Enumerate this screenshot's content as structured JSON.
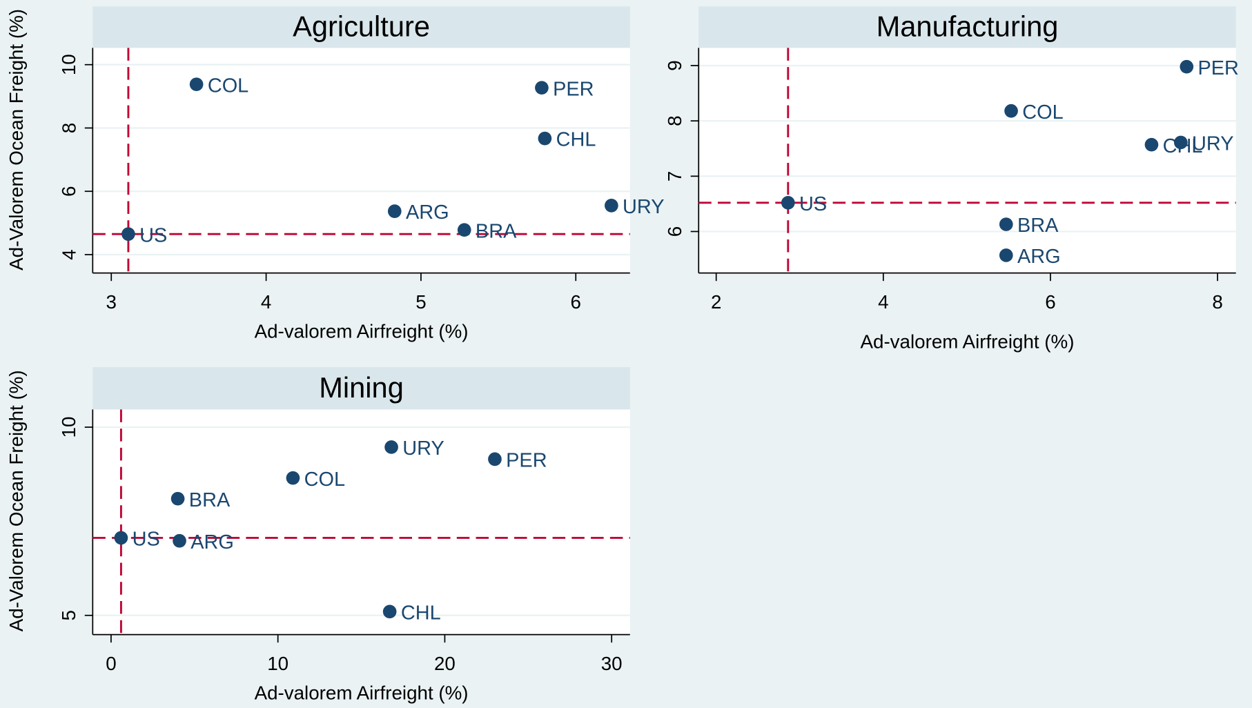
{
  "chart_data": [
    {
      "type": "scatter",
      "title": "Agriculture",
      "xlabel": "Ad-valorem Airfreight (%)",
      "ylabel": "Ad-Valorem Ocean Freight (%)",
      "point_labels": [
        "COL",
        "PER",
        "CHL",
        "ARG",
        "BRA",
        "URY",
        "US"
      ],
      "x": [
        3.55,
        5.78,
        5.8,
        4.83,
        5.28,
        6.23,
        3.11
      ],
      "y": [
        9.38,
        9.27,
        7.67,
        5.37,
        4.78,
        5.55,
        4.65
      ],
      "xline": 3.11,
      "yline": 4.65,
      "xlim": [
        2.88,
        6.35
      ],
      "ylim": [
        3.42,
        10.53
      ],
      "xticks": [
        3,
        4,
        5,
        6
      ],
      "yticks": [
        4,
        6,
        8,
        10
      ],
      "color": "#1a476f",
      "line_color": "#c10534",
      "grid": true
    },
    {
      "type": "scatter",
      "title": "Manufacturing",
      "xlabel": "Ad-valorem Airfreight (%)",
      "point_labels": [
        "PER",
        "COL",
        "CHL",
        "URY",
        "US",
        "BRA",
        "ARG"
      ],
      "x": [
        7.63,
        5.53,
        7.21,
        7.56,
        2.86,
        5.47,
        5.47
      ],
      "y": [
        8.98,
        8.18,
        7.57,
        7.61,
        6.52,
        6.13,
        5.57
      ],
      "xline": 2.86,
      "yline": 6.52,
      "xlim": [
        1.79,
        8.22
      ],
      "ylim": [
        5.25,
        9.32
      ],
      "xticks": [
        2,
        4,
        6,
        8
      ],
      "yticks": [
        6,
        7,
        8,
        9
      ],
      "color": "#1a476f",
      "line_color": "#c10534",
      "grid": true
    },
    {
      "type": "scatter",
      "title": "Mining",
      "xlabel": "Ad-valorem Airfreight (%)",
      "ylabel": "Ad-Valorem Ocean Freight (%)",
      "point_labels": [
        "URY",
        "PER",
        "COL",
        "BRA",
        "US",
        "ARG",
        "CHL"
      ],
      "x": [
        16.8,
        23.0,
        10.9,
        4.0,
        0.6,
        4.1,
        16.7
      ],
      "y": [
        9.47,
        9.15,
        8.65,
        8.1,
        7.06,
        6.98,
        5.1
      ],
      "xline": 0.6,
      "yline": 7.06,
      "xlim": [
        -1.1,
        31.1
      ],
      "ylim": [
        4.49,
        10.47
      ],
      "xticks": [
        0,
        10,
        20,
        30
      ],
      "yticks": [
        5,
        10
      ],
      "color": "#1a476f",
      "line_color": "#c10534",
      "grid": true
    }
  ]
}
